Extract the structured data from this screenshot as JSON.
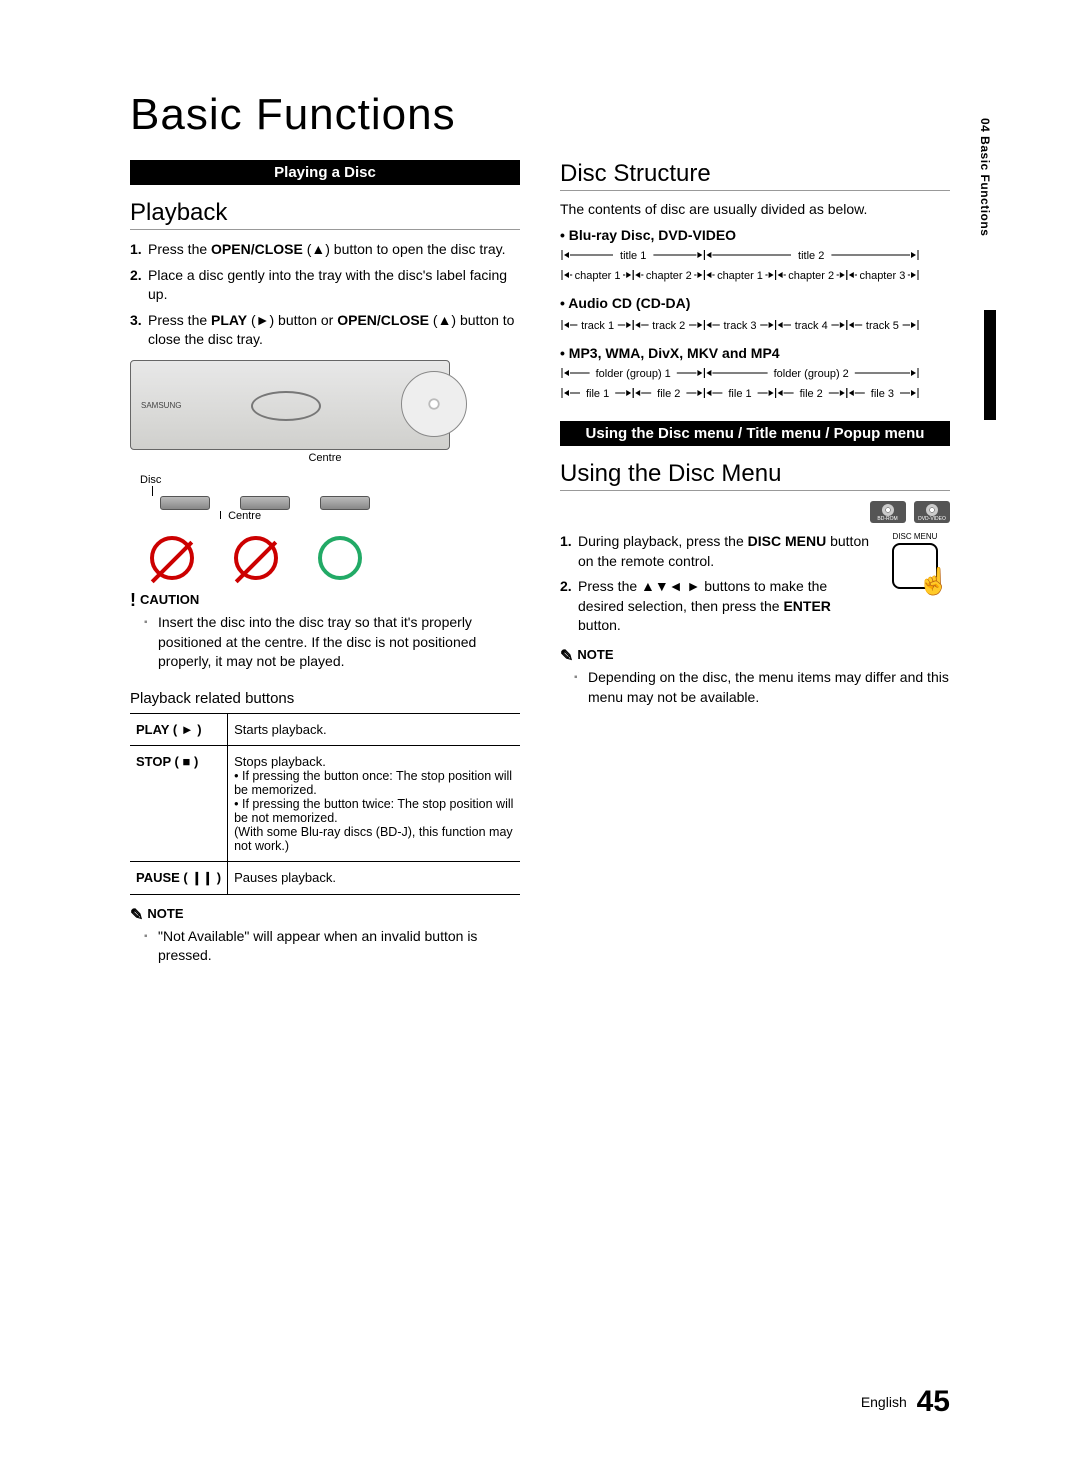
{
  "page_title": "Basic Functions",
  "side_tab": "04  Basic Functions",
  "footer": {
    "lang": "English",
    "page": "45"
  },
  "left": {
    "bar": "Playing a Disc",
    "h_playback": "Playback",
    "steps": [
      {
        "pre": "Press the ",
        "b1": "OPEN/CLOSE",
        "mid": " (▲) button to open the disc tray."
      },
      {
        "pre": "Place a disc gently into the tray with the disc's label facing up."
      },
      {
        "pre": "Press the ",
        "b1": "PLAY",
        "mid": " (►) button or ",
        "b2": "OPEN/CLOSE",
        "post": " (▲) button to close the disc tray."
      }
    ],
    "diag": {
      "centre": "Centre",
      "disc": "Disc",
      "logo": "SAMSUNG"
    },
    "caution_label": "CAUTION",
    "caution_text": "Insert the disc into the disc tray so that it's properly positioned at the centre. If the disc is not positioned properly, it may not be played.",
    "buttons_h": "Playback related buttons",
    "table": {
      "rows": [
        {
          "k": "PLAY ( ► )",
          "v": "Starts playback."
        },
        {
          "k": "STOP ( ■ )",
          "v_main": "Stops playback.",
          "v_items": [
            "If pressing the button once: The stop position will be memorized.",
            "If pressing the button twice: The stop position will be not memorized."
          ],
          "v_note": "(With some Blu-ray discs (BD-J), this function may not work.)"
        },
        {
          "k": "PAUSE ( ❙❙ )",
          "v": "Pauses playback."
        }
      ]
    },
    "note_label": "NOTE",
    "note_text": "\"Not Available\" will appear when an invalid button is pressed."
  },
  "right": {
    "h_struct": "Disc Structure",
    "intro": "The contents of disc are usually divided as below.",
    "s1_h": "Blu-ray Disc, DVD-VIDEO",
    "s1": {
      "top": [
        "title 1",
        "title 2"
      ],
      "bot": [
        "chapter 1",
        "chapter 2",
        "chapter 1",
        "chapter 2",
        "chapter 3"
      ]
    },
    "s2_h": "Audio CD (CD-DA)",
    "s2": {
      "bot": [
        "track 1",
        "track 2",
        "track 3",
        "track 4",
        "track 5"
      ]
    },
    "s3_h": "MP3, WMA, DivX, MKV and MP4",
    "s3": {
      "top": [
        "folder (group) 1",
        "folder (group) 2"
      ],
      "bot": [
        "file 1",
        "file 2",
        "file 1",
        "file 2",
        "file 3"
      ]
    },
    "bar": "Using the Disc menu / Title menu / Popup menu",
    "h_menu": "Using the Disc Menu",
    "remote_lbl": "DISC MENU",
    "icons": [
      "BD-ROM",
      "DVD-VIDEO"
    ],
    "steps": [
      {
        "pre": "During playback, press the ",
        "b1": "DISC MENU",
        "post": "  button on the remote control."
      },
      {
        "pre": "Press the ▲▼◄ ► buttons to make the desired selection, then press the ",
        "b1": "ENTER",
        "post": " button."
      }
    ],
    "note_label": "NOTE",
    "note_text": "Depending on the disc, the menu items may differ and this menu may not be available."
  }
}
